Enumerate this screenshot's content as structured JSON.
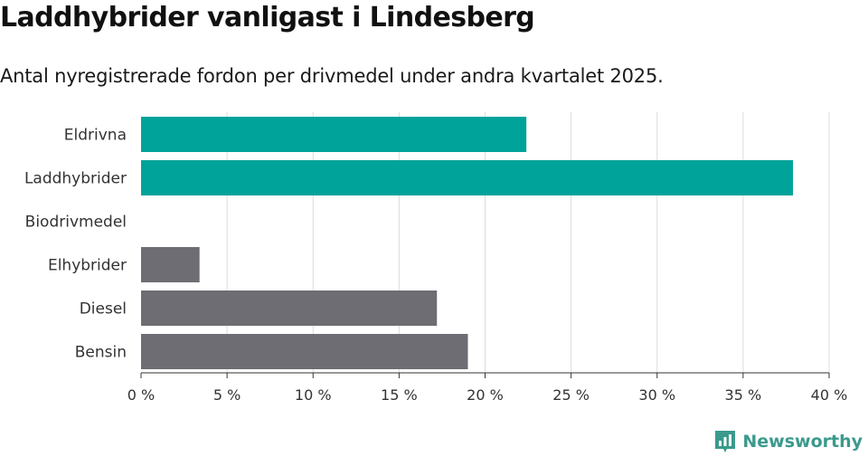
{
  "header": {
    "title": "Laddhybrider vanligast i Lindesberg",
    "subtitle": "Antal nyregistrerade fordon per drivmedel under andra kvartalet 2025."
  },
  "brand": {
    "name": "Newsworthy",
    "icon": "newsworthy-logo-icon",
    "color": "#3a9a8c"
  },
  "colors": {
    "highlight": "#00a39a",
    "other": "#6d6d73",
    "grid": "#dcdcdc",
    "axis": "#333333"
  },
  "chart_data": {
    "type": "bar",
    "orientation": "horizontal",
    "categories": [
      "Eldrivna",
      "Laddhybrider",
      "Biodrivmedel",
      "Elhybrider",
      "Diesel",
      "Bensin"
    ],
    "values": [
      22.4,
      37.9,
      0,
      3.4,
      17.2,
      19.0
    ],
    "highlighted": [
      true,
      true,
      false,
      false,
      false,
      false
    ],
    "xlim": [
      0,
      40
    ],
    "x_ticks": [
      0,
      5,
      10,
      15,
      20,
      25,
      30,
      35,
      40
    ],
    "x_tick_labels": [
      "0 %",
      "5 %",
      "10 %",
      "15 %",
      "20 %",
      "25 %",
      "30 %",
      "35 %",
      "40 %"
    ],
    "grid": true
  }
}
